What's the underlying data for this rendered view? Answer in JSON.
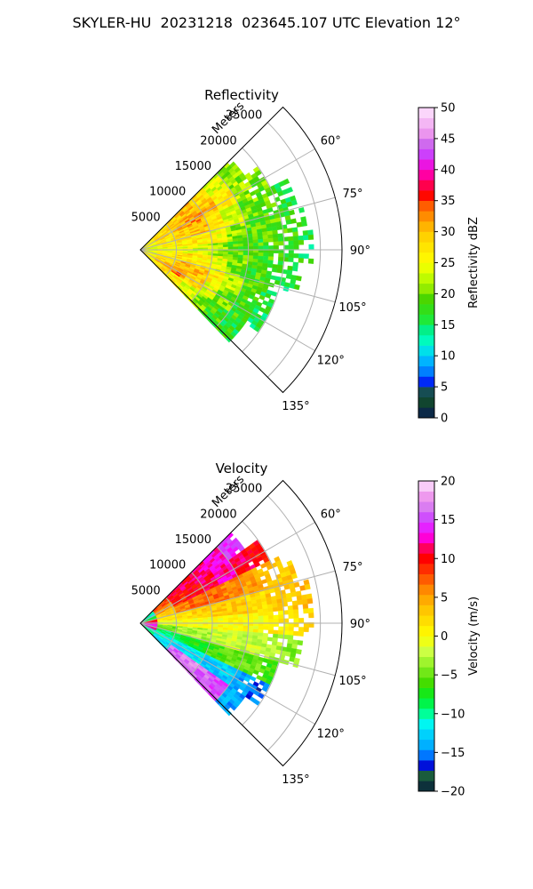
{
  "title": "SKYLER-HU  20231218  023645.107 UTC Elevation 12°",
  "chart_data": [
    {
      "type": "heatmap",
      "projection": "polar-sector",
      "title": "Reflectivity",
      "radial_label": "Meters",
      "radial_ticks": [
        "5000",
        "10000",
        "15000",
        "20000",
        "25000"
      ],
      "radial_tick_values": [
        5000,
        10000,
        15000,
        20000,
        25000
      ],
      "range_max": 28000,
      "azimuth_ticks": [
        "60°",
        "75°",
        "90°",
        "105°",
        "120°",
        "135°"
      ],
      "azimuth_tick_values": [
        60,
        75,
        90,
        105,
        120,
        135
      ],
      "azimuth_range": [
        45,
        135
      ],
      "grid": true,
      "colorbar": {
        "label": "Reflectivity dBZ",
        "min": 0,
        "max": 50,
        "ticks": [
          "0",
          "5",
          "10",
          "15",
          "20",
          "25",
          "30",
          "35",
          "40",
          "45",
          "50"
        ],
        "tick_values": [
          0,
          5,
          10,
          15,
          20,
          25,
          30,
          35,
          40,
          45,
          50
        ],
        "colors": [
          [
            0,
            "#0a1a5c"
          ],
          [
            2,
            "#0e3d2a"
          ],
          [
            4,
            "#1a5c3c"
          ],
          [
            5,
            "#0000c8"
          ],
          [
            6,
            "#0033ff"
          ],
          [
            8,
            "#0099ff"
          ],
          [
            10,
            "#00c8ff"
          ],
          [
            12,
            "#00ffcc"
          ],
          [
            14,
            "#00f090"
          ],
          [
            16,
            "#22e830"
          ],
          [
            19,
            "#44d400"
          ],
          [
            21,
            "#99ee00"
          ],
          [
            23,
            "#ccff00"
          ],
          [
            25,
            "#ffff00"
          ],
          [
            28,
            "#ffe000"
          ],
          [
            30,
            "#ffc800"
          ],
          [
            32,
            "#ff9900"
          ],
          [
            34,
            "#ff6600"
          ],
          [
            36,
            "#ff0000"
          ],
          [
            38,
            "#ff0066"
          ],
          [
            40,
            "#ff00cc"
          ],
          [
            42,
            "#cc33ff"
          ],
          [
            44,
            "#cc66ee"
          ],
          [
            46,
            "#ee99ee"
          ],
          [
            50,
            "#ffe6ff"
          ]
        ]
      },
      "data": {
        "description_free": true,
        "range_bins_m": [
          0,
          2500,
          5000,
          7500,
          10000,
          12500,
          15000,
          17500,
          20000,
          22500
        ],
        "azimuth_bins_deg": [
          50,
          60,
          70,
          80,
          90,
          100,
          110,
          120,
          130
        ],
        "values_dbz": [
          [
            26,
            28,
            29,
            30,
            28,
            24,
            21,
            null,
            null,
            null
          ],
          [
            26,
            29,
            31,
            32,
            30,
            27,
            22,
            20,
            null,
            null
          ],
          [
            25,
            27,
            29,
            30,
            28,
            24,
            20,
            19,
            17,
            null
          ],
          [
            24,
            26,
            27,
            27,
            25,
            21,
            19,
            19,
            18,
            16
          ],
          [
            24,
            25,
            25,
            24,
            21,
            19,
            18,
            18,
            17,
            16
          ],
          [
            25,
            27,
            28,
            27,
            24,
            20,
            18,
            17,
            16,
            null
          ],
          [
            26,
            28,
            31,
            30,
            27,
            22,
            19,
            17,
            null,
            null
          ],
          [
            27,
            30,
            33,
            29,
            24,
            20,
            18,
            16,
            null,
            null
          ],
          [
            26,
            28,
            27,
            24,
            20,
            18,
            17,
            null,
            null,
            null
          ]
        ]
      }
    },
    {
      "type": "heatmap",
      "projection": "polar-sector",
      "title": "Velocity",
      "radial_label": "Meters",
      "radial_ticks": [
        "5000",
        "10000",
        "15000",
        "20000",
        "25000"
      ],
      "radial_tick_values": [
        5000,
        10000,
        15000,
        20000,
        25000
      ],
      "range_max": 28000,
      "azimuth_ticks": [
        "60°",
        "75°",
        "90°",
        "105°",
        "120°",
        "135°"
      ],
      "azimuth_tick_values": [
        60,
        75,
        90,
        105,
        120,
        135
      ],
      "azimuth_range": [
        45,
        135
      ],
      "grid": true,
      "colorbar": {
        "label": "Velocity (m/s)",
        "min": -20,
        "max": 20,
        "ticks": [
          "−20",
          "−15",
          "−10",
          "−5",
          "0",
          "5",
          "10",
          "15",
          "20"
        ],
        "tick_values": [
          -20,
          -15,
          -10,
          -5,
          0,
          5,
          10,
          15,
          20
        ],
        "colors": [
          [
            -20,
            "#0a1a5c"
          ],
          [
            -19,
            "#0e3d2a"
          ],
          [
            -18,
            "#1a5c3c"
          ],
          [
            -17,
            "#0000c8"
          ],
          [
            -16,
            "#0033ff"
          ],
          [
            -15,
            "#0099ff"
          ],
          [
            -13,
            "#00c8ff"
          ],
          [
            -11,
            "#00ffee"
          ],
          [
            -10,
            "#00ff99"
          ],
          [
            -8,
            "#00ee22"
          ],
          [
            -6,
            "#44dd00"
          ],
          [
            -4,
            "#88ee22"
          ],
          [
            -2,
            "#ccff44"
          ],
          [
            0,
            "#ffff00"
          ],
          [
            2,
            "#ffdd00"
          ],
          [
            4,
            "#ffbb00"
          ],
          [
            6,
            "#ff8800"
          ],
          [
            8,
            "#ff4400"
          ],
          [
            10,
            "#ff0000"
          ],
          [
            12,
            "#ff0088"
          ],
          [
            13,
            "#ff00ff"
          ],
          [
            15,
            "#cc44ff"
          ],
          [
            17,
            "#dd88ee"
          ],
          [
            18,
            "#ee99ee"
          ],
          [
            20,
            "#ffe6ff"
          ]
        ]
      },
      "data": {
        "range_bins_m": [
          0,
          2500,
          5000,
          7500,
          10000,
          12500,
          15000,
          17500,
          20000,
          22500
        ],
        "azimuth_bins_deg": [
          50,
          60,
          70,
          80,
          90,
          100,
          110,
          120,
          130
        ],
        "values_ms": [
          [
            -10,
            8,
            10,
            11,
            12,
            13,
            14,
            null,
            null,
            null
          ],
          [
            -12,
            6,
            9,
            10,
            11,
            12,
            11,
            10,
            null,
            null
          ],
          [
            -8,
            3,
            6,
            7,
            7,
            6,
            5,
            4,
            3,
            null
          ],
          [
            10,
            1,
            2,
            3,
            3,
            3,
            2,
            3,
            3,
            4
          ],
          [
            12,
            -1,
            0,
            0,
            0,
            0,
            0,
            1,
            1,
            2
          ],
          [
            14,
            -5,
            -3,
            -3,
            -2,
            -2,
            -2,
            -3,
            -4,
            null
          ],
          [
            12,
            -9,
            -8,
            -7,
            -6,
            -5,
            -5,
            -6,
            null,
            null
          ],
          [
            -12,
            -11,
            -12,
            -12,
            -13,
            -13,
            -14,
            -16,
            null,
            null
          ],
          [
            -10,
            -12,
            16,
            17,
            16,
            15,
            -14,
            null,
            null,
            null
          ]
        ]
      }
    }
  ]
}
